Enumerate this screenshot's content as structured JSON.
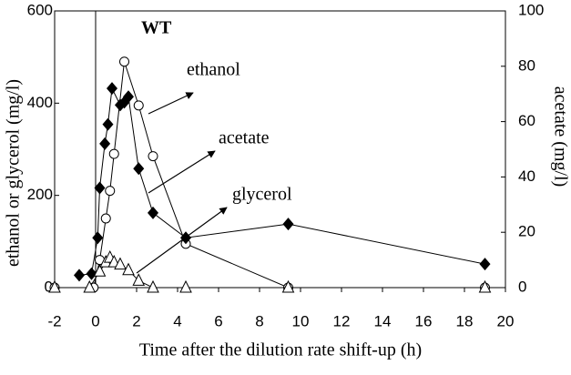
{
  "chart_data": {
    "type": "line",
    "annotations": [
      "WT",
      "ethanol",
      "acetate",
      "glycerol"
    ],
    "xlabel": "Time after the dilution rate shift-up (h)",
    "ylabel": "ethanol or glycerol (mg/l)",
    "y2label": "acetate (mg/l)",
    "xlim": [
      -2,
      20
    ],
    "xticks": [
      -2,
      0,
      2,
      4,
      6,
      8,
      10,
      12,
      14,
      16,
      18,
      20
    ],
    "ylim": [
      0,
      600
    ],
    "yticks": [
      0,
      200,
      400,
      600
    ],
    "y2lim": [
      0,
      100
    ],
    "y2ticks": [
      0,
      20,
      40,
      60,
      80,
      100
    ],
    "series": [
      {
        "name": "ethanol",
        "color": "#000000",
        "marker": "circle",
        "x": [
          -2,
          -0.1,
          0.2,
          0.5,
          0.7,
          0.9,
          1.4,
          2.1,
          2.8,
          4.4,
          9.4,
          19
        ],
        "values": [
          0,
          0,
          60,
          150,
          210,
          290,
          490,
          395,
          285,
          95,
          0,
          0
        ]
      },
      {
        "name": "acetate",
        "color": "#000000",
        "marker": "diamond",
        "axis": "y2",
        "x": [
          -0.8,
          -0.2,
          0.1,
          0.2,
          0.45,
          0.6,
          0.8,
          1.2,
          1.4,
          1.6,
          2.1,
          2.8,
          4.4,
          9.4,
          19
        ],
        "values": [
          4.5,
          5,
          18,
          36,
          52,
          59,
          72,
          66,
          67,
          69,
          43,
          27,
          18,
          23,
          8.5
        ]
      },
      {
        "name": "glycerol",
        "color": "#000000",
        "marker": "triangle",
        "x": [
          -2,
          -0.3,
          0.2,
          0.5,
          0.7,
          0.9,
          1.2,
          1.6,
          2.1,
          2.8,
          4.4,
          9.4,
          19
        ],
        "values": [
          0,
          0,
          35,
          55,
          65,
          55,
          50,
          38,
          15,
          0,
          0,
          0,
          0
        ]
      }
    ]
  }
}
